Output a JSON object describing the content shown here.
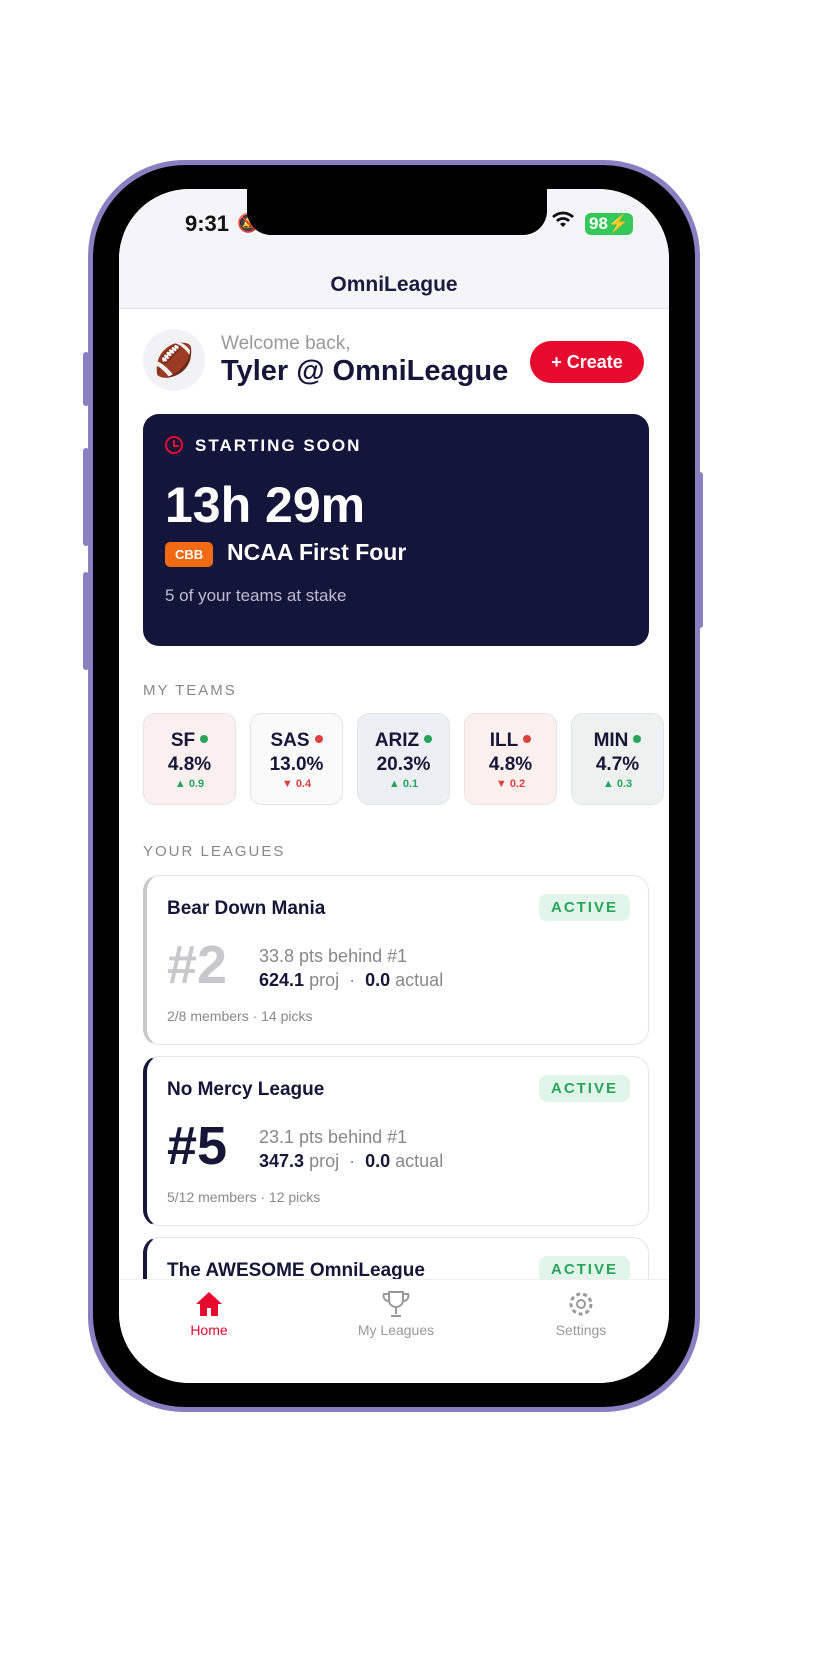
{
  "status": {
    "time": "9:31",
    "battery": "98"
  },
  "app": {
    "title": "OmniLeague"
  },
  "header": {
    "avatar_emoji": "🏈",
    "welcome": "Welcome back,",
    "username": "Tyler @ OmniLeague",
    "create_label": "+ Create"
  },
  "starting_soon": {
    "label": "STARTING SOON",
    "countdown": "13h 29m",
    "tag": "CBB",
    "event": "NCAA First Four",
    "stake": "5 of your teams at stake"
  },
  "my_teams": {
    "title": "MY TEAMS",
    "items": [
      {
        "abbr": "SF",
        "pct": "4.8%",
        "change": "▲ 0.9",
        "trend": "up",
        "bg": "#fbefef"
      },
      {
        "abbr": "SAS",
        "pct": "13.0%",
        "change": "▼ 0.4",
        "trend": "down",
        "bg": "#fafafb"
      },
      {
        "abbr": "ARIZ",
        "pct": "20.3%",
        "change": "▲ 0.1",
        "trend": "up",
        "bg": "#eceff4"
      },
      {
        "abbr": "ILL",
        "pct": "4.8%",
        "change": "▼ 0.2",
        "trend": "down",
        "bg": "#fcf0ee"
      },
      {
        "abbr": "MIN",
        "pct": "4.7%",
        "change": "▲ 0.3",
        "trend": "up",
        "bg": "#eef1ef"
      }
    ]
  },
  "leagues": {
    "title": "YOUR LEAGUES",
    "items": [
      {
        "name": "Bear Down Mania",
        "status": "ACTIVE",
        "rank": "#2",
        "behind": "33.8 pts behind #1",
        "proj": "624.1",
        "proj_label": "proj",
        "sep": "·",
        "actual": "0.0",
        "actual_label": "actual",
        "members": "2/8 members · 14 picks",
        "accent": "#c8c8cc"
      },
      {
        "name": "No Mercy League",
        "status": "ACTIVE",
        "rank": "#5",
        "behind": "23.1 pts behind #1",
        "proj": "347.3",
        "proj_label": "proj",
        "sep": "·",
        "actual": "0.0",
        "actual_label": "actual",
        "members": "5/12 members · 12 picks",
        "accent": "#151638"
      },
      {
        "name": "The AWESOME OmniLeague",
        "status": "ACTIVE",
        "accent": "#151638"
      }
    ]
  },
  "tabs": [
    {
      "label": "Home",
      "icon": "home-icon",
      "active": true
    },
    {
      "label": "My Leagues",
      "icon": "trophy-icon"
    },
    {
      "label": "Settings",
      "icon": "gear-icon"
    }
  ],
  "colors": {
    "accent": "#e8092f",
    "navy": "#14153b",
    "up": "#27a35a",
    "down": "#d9413f"
  }
}
